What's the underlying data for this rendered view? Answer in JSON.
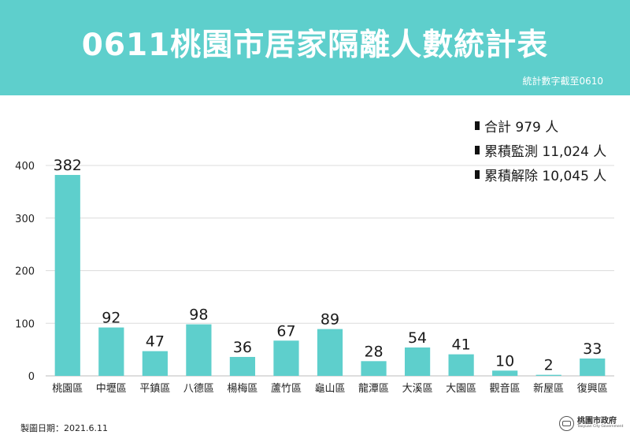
{
  "header": {
    "title": "0611桃園市居家隔離人數統計表",
    "subnote": "統計數字截至0610"
  },
  "stats": [
    {
      "label": "合計 979 人"
    },
    {
      "label": "累積監測 11,024 人"
    },
    {
      "label": "累積解除 10,045 人"
    }
  ],
  "chart_data": {
    "type": "bar",
    "title": "0611桃園市居家隔離人數統計表",
    "xlabel": "",
    "ylabel": "",
    "categories": [
      "桃園區",
      "中壢區",
      "平鎮區",
      "八德區",
      "楊梅區",
      "蘆竹區",
      "龜山區",
      "龍潭區",
      "大溪區",
      "大園區",
      "觀音區",
      "新屋區",
      "復興區"
    ],
    "values": [
      382,
      92,
      47,
      98,
      36,
      67,
      89,
      28,
      54,
      41,
      10,
      2,
      33
    ],
    "ylim": [
      0,
      400
    ],
    "yticks": [
      0,
      100,
      200,
      300,
      400
    ],
    "grid": true,
    "bar_color": "#5ecfcc",
    "grid_color": "#dcdcdc"
  },
  "footer": {
    "date": "製圖日期：2021.6.11",
    "logo_name": "桃園市政府",
    "logo_en": "Taoyuan City Government"
  }
}
